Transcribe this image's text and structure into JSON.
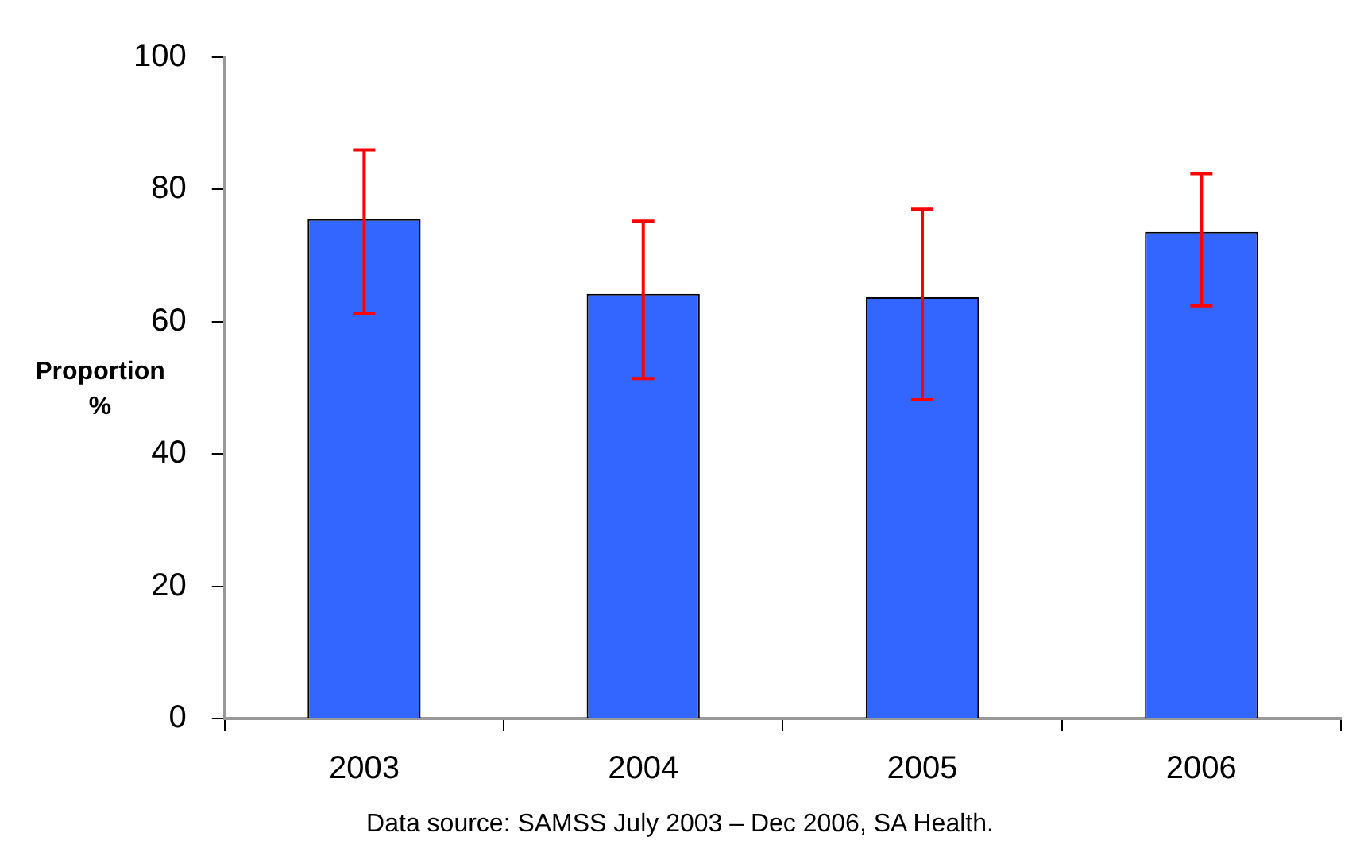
{
  "chart_data": {
    "type": "bar",
    "ylabel": "Proportion %",
    "categories": [
      "2003",
      "2004",
      "2005",
      "2006"
    ],
    "values": [
      75.5,
      64.2,
      63.7,
      73.6
    ],
    "color": "#3366ff",
    "errors": [
      [
        61.3,
        86.0
      ],
      [
        51.4,
        75.2
      ],
      [
        48.2,
        77.0
      ],
      [
        62.4,
        82.4
      ]
    ],
    "ylim": [
      0,
      100
    ],
    "yticks": [
      0,
      20,
      40,
      60,
      80,
      100
    ],
    "grid": false,
    "legend": false,
    "annotations": [
      "Data source: SAMSS July 2003 – Dec 2006, SA Health."
    ]
  }
}
